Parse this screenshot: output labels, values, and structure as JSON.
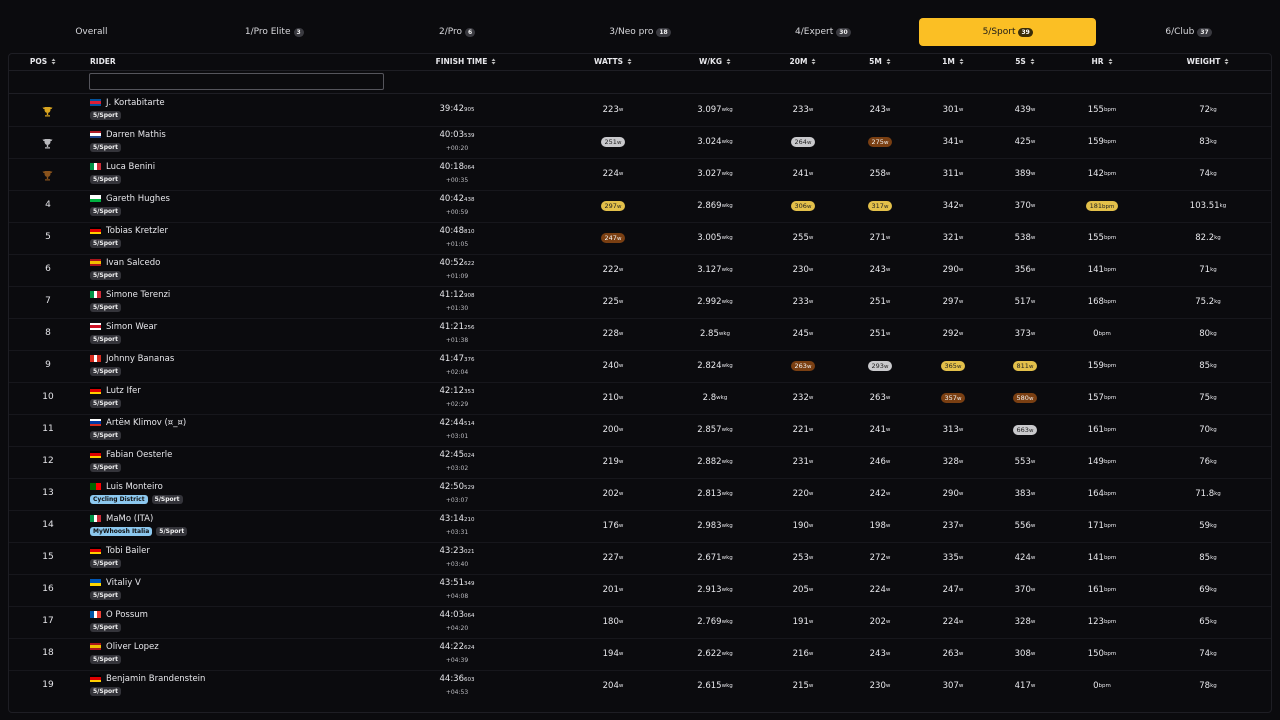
{
  "tabs": [
    {
      "label": "Overall"
    },
    {
      "label": "1/Pro Elite",
      "count": 3
    },
    {
      "label": "2/Pro",
      "count": 6
    },
    {
      "label": "3/Neo pro",
      "count": 18
    },
    {
      "label": "4/Expert",
      "count": 30
    },
    {
      "label": "5/Sport",
      "count": 39,
      "active": true
    },
    {
      "label": "6/Club",
      "count": 37
    }
  ],
  "headers": [
    {
      "label": "POS",
      "sortable": true
    },
    {
      "label": "RIDER"
    },
    {
      "label": "FINISH TIME",
      "sortable": true
    },
    {
      "label": "WATTS",
      "sortable": true,
      "unit": "w"
    },
    {
      "label": "W/KG",
      "sortable": true,
      "unit": "wkg"
    },
    {
      "label": "20M",
      "sortable": true,
      "unit": "w"
    },
    {
      "label": "5M",
      "sortable": true,
      "unit": "w"
    },
    {
      "label": "1M",
      "sortable": true,
      "unit": "w"
    },
    {
      "label": "5S",
      "sortable": true,
      "unit": "w"
    },
    {
      "label": "HR",
      "sortable": true,
      "unit": "bpm"
    },
    {
      "label": "WEIGHT",
      "sortable": true,
      "unit": "kg"
    }
  ],
  "badge_colors": {
    "gold": "#e3c04a",
    "silver": "#c9c9cc",
    "bronze": "#7a3f12"
  },
  "trophy_colors": {
    "gold": "#d9a520",
    "silver": "#b9b9bd",
    "bronze": "#8a531c"
  },
  "rows": [
    {
      "trophy": "gold",
      "rider": "J. Kortabitarte",
      "flag": {
        "dir": "h",
        "stripes": [
          "#02529c",
          "#dc1e35",
          "#02529c"
        ]
      },
      "teams": [
        {
          "name": "5/Sport",
          "color": "#34343a"
        }
      ],
      "time": "39:42",
      "ms": "905",
      "stats": [
        223,
        3.097,
        233,
        243,
        301,
        439,
        155,
        72
      ]
    },
    {
      "trophy": "silver",
      "rider": "Darren Mathis",
      "flag": {
        "dir": "h",
        "stripes": [
          "#ae1c28",
          "#ffffff",
          "#21468b"
        ]
      },
      "teams": [
        {
          "name": "5/Sport",
          "color": "#34343a"
        }
      ],
      "time": "40:03",
      "ms": "539",
      "gap": "+00:20",
      "stats": [
        {
          "value": 251,
          "badge": "silver"
        },
        3.024,
        {
          "value": 264,
          "badge": "silver"
        },
        {
          "value": 275,
          "badge": "bronze"
        },
        341,
        425,
        159,
        83
      ]
    },
    {
      "trophy": "bronze",
      "rider": "Luca Benini",
      "flag": {
        "dir": "v",
        "stripes": [
          "#009246",
          "#ffffff",
          "#ce2b37"
        ]
      },
      "teams": [
        {
          "name": "5/Sport",
          "color": "#34343a"
        }
      ],
      "time": "40:18",
      "ms": "064",
      "gap": "+00:35",
      "stats": [
        224,
        3.027,
        241,
        258,
        311,
        389,
        142,
        74
      ]
    },
    {
      "pos": 4,
      "rider": "Gareth Hughes",
      "flag": {
        "dir": "h",
        "stripes": [
          "#ffffff",
          "#00b140"
        ]
      },
      "teams": [
        {
          "name": "5/Sport",
          "color": "#34343a"
        }
      ],
      "time": "40:42",
      "ms": "438",
      "gap": "+00:59",
      "stats": [
        {
          "value": 297,
          "badge": "gold"
        },
        2.869,
        {
          "value": 306,
          "badge": "gold"
        },
        {
          "value": 317,
          "badge": "gold"
        },
        342,
        370,
        {
          "value": 181,
          "badge": "gold"
        },
        103.51
      ]
    },
    {
      "pos": 5,
      "rider": "Tobias Kretzler",
      "flag": {
        "dir": "h",
        "stripes": [
          "#000000",
          "#dd0000",
          "#ffce00"
        ]
      },
      "teams": [
        {
          "name": "5/Sport",
          "color": "#34343a"
        }
      ],
      "time": "40:48",
      "ms": "810",
      "gap": "+01:05",
      "stats": [
        {
          "value": 247,
          "badge": "bronze"
        },
        3.005,
        255,
        271,
        321,
        538,
        155,
        82.2
      ]
    },
    {
      "pos": 6,
      "rider": "Ivan Salcedo",
      "flag": {
        "dir": "h",
        "stripes": [
          "#aa151b",
          "#f1bf00",
          "#aa151b"
        ]
      },
      "teams": [
        {
          "name": "5/Sport",
          "color": "#34343a"
        }
      ],
      "time": "40:52",
      "ms": "622",
      "gap": "+01:09",
      "stats": [
        222,
        3.127,
        230,
        243,
        290,
        356,
        141,
        71
      ]
    },
    {
      "pos": 7,
      "rider": "Simone Terenzi",
      "flag": {
        "dir": "v",
        "stripes": [
          "#009246",
          "#ffffff",
          "#ce2b37"
        ]
      },
      "teams": [
        {
          "name": "5/Sport",
          "color": "#34343a"
        }
      ],
      "time": "41:12",
      "ms": "908",
      "gap": "+01:30",
      "stats": [
        225,
        2.992,
        233,
        251,
        297,
        517,
        168,
        75.2
      ]
    },
    {
      "pos": 8,
      "rider": "Simon Wear",
      "flag": {
        "dir": "h",
        "stripes": [
          "#ffffff",
          "#ce1124",
          "#ffffff"
        ]
      },
      "teams": [
        {
          "name": "5/Sport",
          "color": "#34343a"
        }
      ],
      "time": "41:21",
      "ms": "256",
      "gap": "+01:38",
      "stats": [
        228,
        2.85,
        245,
        251,
        292,
        373,
        0,
        80
      ]
    },
    {
      "pos": 9,
      "rider": "Johnny Bananas",
      "flag": {
        "dir": "v",
        "stripes": [
          "#d52b1e",
          "#ffffff",
          "#d52b1e"
        ]
      },
      "teams": [
        {
          "name": "5/Sport",
          "color": "#34343a"
        }
      ],
      "time": "41:47",
      "ms": "376",
      "gap": "+02:04",
      "stats": [
        240,
        2.824,
        {
          "value": 263,
          "badge": "bronze"
        },
        {
          "value": 293,
          "badge": "silver"
        },
        {
          "value": 365,
          "badge": "gold"
        },
        {
          "value": 811,
          "badge": "gold"
        },
        159,
        85
      ]
    },
    {
      "pos": 10,
      "rider": "Lutz Ifer",
      "flag": {
        "dir": "h",
        "stripes": [
          "#000000",
          "#dd0000",
          "#ffce00"
        ]
      },
      "teams": [
        {
          "name": "5/Sport",
          "color": "#34343a"
        }
      ],
      "time": "42:12",
      "ms": "353",
      "gap": "+02:29",
      "stats": [
        210,
        2.8,
        232,
        263,
        {
          "value": 357,
          "badge": "bronze"
        },
        {
          "value": 580,
          "badge": "bronze"
        },
        157,
        75
      ]
    },
    {
      "pos": 11,
      "rider": "Artём Klimov (¤_¤)",
      "flag": {
        "dir": "h",
        "stripes": [
          "#ffffff",
          "#0039a6",
          "#d52b1e"
        ]
      },
      "teams": [
        {
          "name": "5/Sport",
          "color": "#34343a"
        }
      ],
      "time": "42:44",
      "ms": "514",
      "gap": "+03:01",
      "stats": [
        200,
        2.857,
        221,
        241,
        313,
        {
          "value": 663,
          "badge": "silver"
        },
        161,
        70
      ]
    },
    {
      "pos": 12,
      "rider": "Fabian Oesterle",
      "flag": {
        "dir": "h",
        "stripes": [
          "#000000",
          "#dd0000",
          "#ffce00"
        ]
      },
      "teams": [
        {
          "name": "5/Sport",
          "color": "#34343a"
        }
      ],
      "time": "42:45",
      "ms": "024",
      "gap": "+03:02",
      "stats": [
        219,
        2.882,
        231,
        246,
        328,
        553,
        149,
        76
      ]
    },
    {
      "pos": 13,
      "rider": "Luis Monteiro",
      "flag": {
        "dir": "v",
        "stripes": [
          "#006600",
          "#ff0000"
        ]
      },
      "teams": [
        {
          "name": "Cycling District",
          "color": "#8cc8ef"
        },
        {
          "name": "5/Sport",
          "color": "#34343a"
        }
      ],
      "time": "42:50",
      "ms": "529",
      "gap": "+03:07",
      "stats": [
        202,
        2.813,
        220,
        242,
        290,
        383,
        164,
        71.8
      ]
    },
    {
      "pos": 14,
      "rider": "MaMo (ITA)",
      "flag": {
        "dir": "v",
        "stripes": [
          "#009246",
          "#ffffff",
          "#ce2b37"
        ]
      },
      "teams": [
        {
          "name": "MyWhoosh Italia",
          "color": "#8cc8ef"
        },
        {
          "name": "5/Sport",
          "color": "#34343a"
        }
      ],
      "time": "43:14",
      "ms": "210",
      "gap": "+03:31",
      "stats": [
        176,
        2.983,
        190,
        198,
        237,
        556,
        171,
        59
      ]
    },
    {
      "pos": 15,
      "rider": "Tobi Bailer",
      "flag": {
        "dir": "h",
        "stripes": [
          "#000000",
          "#dd0000",
          "#ffce00"
        ]
      },
      "teams": [
        {
          "name": "5/Sport",
          "color": "#34343a"
        }
      ],
      "time": "43:23",
      "ms": "021",
      "gap": "+03:40",
      "stats": [
        227,
        2.671,
        253,
        272,
        335,
        424,
        141,
        85
      ]
    },
    {
      "pos": 16,
      "rider": "Vitaliy V",
      "flag": {
        "dir": "h",
        "stripes": [
          "#0057b7",
          "#ffd700"
        ]
      },
      "teams": [
        {
          "name": "5/Sport",
          "color": "#34343a"
        }
      ],
      "time": "43:51",
      "ms": "349",
      "gap": "+04:08",
      "stats": [
        201,
        2.913,
        205,
        224,
        247,
        370,
        161,
        69
      ]
    },
    {
      "pos": 17,
      "rider": "O Possum",
      "flag": {
        "dir": "v",
        "stripes": [
          "#0055a4",
          "#ffffff",
          "#ef4135"
        ]
      },
      "teams": [
        {
          "name": "5/Sport",
          "color": "#34343a"
        }
      ],
      "time": "44:03",
      "ms": "064",
      "gap": "+04:20",
      "stats": [
        180,
        2.769,
        191,
        202,
        224,
        328,
        123,
        65
      ]
    },
    {
      "pos": 18,
      "rider": "Oliver Lopez",
      "flag": {
        "dir": "h",
        "stripes": [
          "#aa151b",
          "#f1bf00",
          "#aa151b"
        ]
      },
      "teams": [
        {
          "name": "5/Sport",
          "color": "#34343a"
        }
      ],
      "time": "44:22",
      "ms": "624",
      "gap": "+04:39",
      "stats": [
        194,
        2.622,
        216,
        243,
        263,
        308,
        150,
        74
      ]
    },
    {
      "pos": 19,
      "rider": "Benjamin Brandenstein",
      "flag": {
        "dir": "h",
        "stripes": [
          "#000000",
          "#dd0000",
          "#ffce00"
        ]
      },
      "teams": [
        {
          "name": "5/Sport",
          "color": "#34343a"
        }
      ],
      "time": "44:36",
      "ms": "603",
      "gap": "+04:53",
      "stats": [
        204,
        2.615,
        215,
        230,
        307,
        417,
        0,
        78
      ]
    }
  ]
}
